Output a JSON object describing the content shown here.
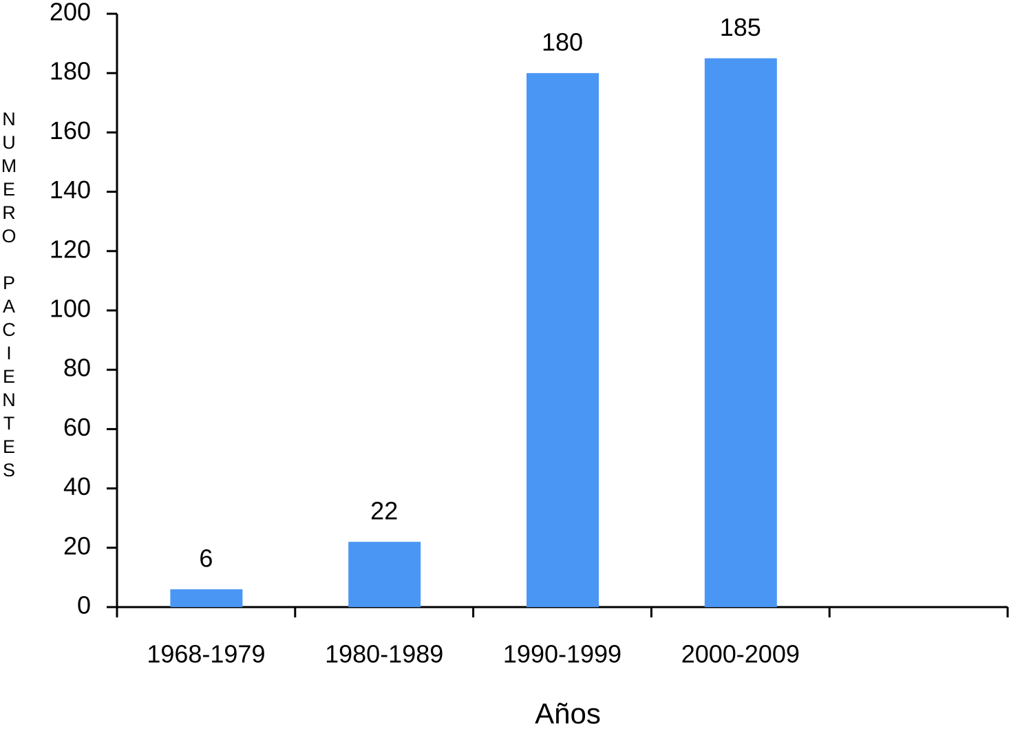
{
  "chart_data": {
    "type": "bar",
    "x_label": "Años",
    "y_label": "NUMERO PACIENTES",
    "categories": [
      "1968-1979",
      "1980-1989",
      "1990-1999",
      "2000-2009",
      null
    ],
    "values": [
      6,
      22,
      180,
      185,
      null
    ],
    "color": "#4a96f5",
    "ylim": [
      0,
      200
    ],
    "yticks": [
      0,
      20,
      40,
      60,
      80,
      100,
      120,
      140,
      160,
      180,
      200
    ],
    "grid": false
  }
}
